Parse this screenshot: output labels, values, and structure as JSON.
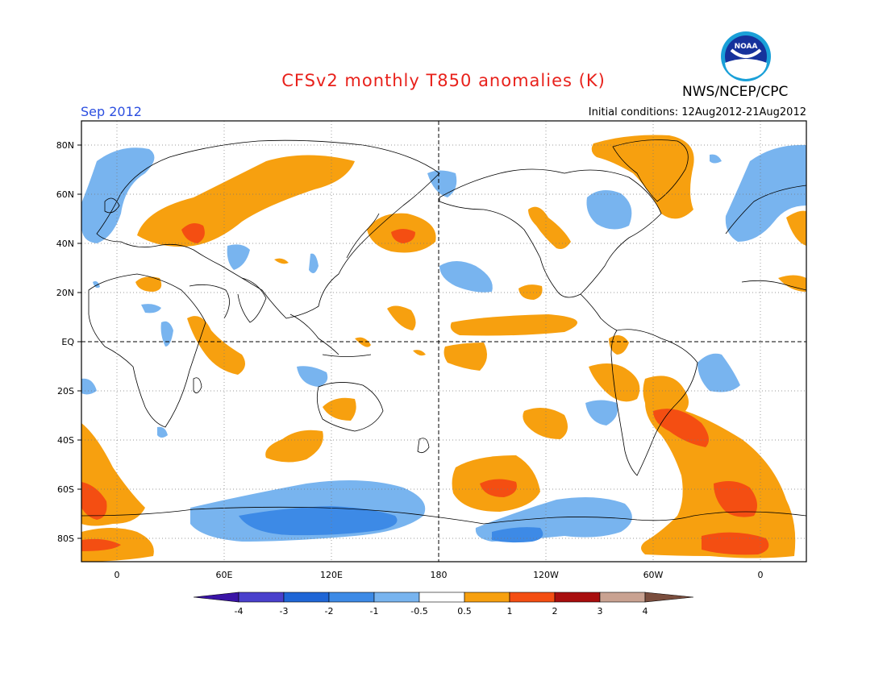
{
  "header": {
    "title": "CFSv2 monthly T850 anomalies (K)",
    "valid_month": "Sep 2012",
    "initial_conditions": "Initial conditions: 12Aug2012-21Aug2012",
    "agency": "NWS/NCEP/CPC",
    "logo_text": "NOAA"
  },
  "map": {
    "projection": "cylindrical equidistant, centered 180",
    "lat_labels": [
      "80N",
      "60N",
      "40N",
      "20N",
      "EQ",
      "20S",
      "40S",
      "60S",
      "80S"
    ],
    "lon_labels": [
      "0",
      "60E",
      "120E",
      "180",
      "120W",
      "60W",
      "0"
    ],
    "dashed_reference_lines": [
      "EQ",
      "180"
    ]
  },
  "colorbar": {
    "tick_labels": [
      "-4",
      "-3",
      "-2",
      "-1",
      "-0.5",
      "0.5",
      "1",
      "2",
      "3",
      "4"
    ],
    "colors": [
      "#3a14a6",
      "#4a40cc",
      "#1f66d6",
      "#3d8ae6",
      "#78b4ef",
      "#ffffff",
      "#f7a00f",
      "#f44e12",
      "#a80e0e",
      "#c9a291",
      "#7a4d3d"
    ]
  },
  "legend_colors": {
    "neg_half": "#78b4ef",
    "neg_one": "#3d8ae6",
    "pos_half": "#f7a00f",
    "pos_one": "#f44e12"
  }
}
